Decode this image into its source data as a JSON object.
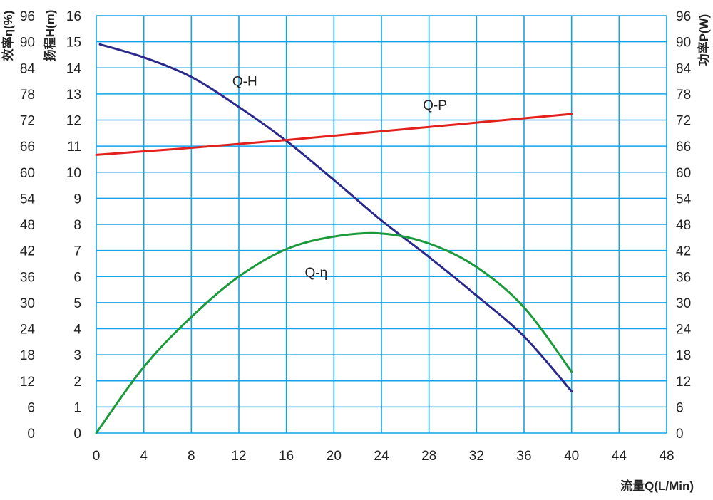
{
  "chart_data": {
    "type": "line",
    "title": "",
    "xlabel": "流量Q(L/Min)",
    "ylabel_left_outer": "效率η(%)",
    "ylabel_left": "扬程H(m)",
    "ylabel_right": "功率P(W)",
    "xlim": [
      0,
      48
    ],
    "ylim_head": [
      0,
      16
    ],
    "ylim_eff": [
      0,
      96
    ],
    "ylim_power": [
      0,
      96
    ],
    "grid": true,
    "x_ticks": [
      0,
      4,
      8,
      12,
      16,
      20,
      24,
      28,
      32,
      36,
      40,
      44,
      48
    ],
    "head_ticks": [
      0,
      1,
      2,
      3,
      4,
      5,
      6,
      7,
      8,
      9,
      10,
      11,
      12,
      13,
      14,
      15,
      16
    ],
    "eff_ticks": [
      0,
      6,
      12,
      18,
      24,
      30,
      36,
      42,
      48,
      54,
      60,
      66,
      72,
      78,
      84,
      90,
      96
    ],
    "power_ticks": [
      0,
      6,
      12,
      18,
      24,
      30,
      36,
      42,
      48,
      54,
      60,
      66,
      72,
      78,
      84,
      90,
      96
    ],
    "series": [
      {
        "name": "Q-H",
        "axis": "head",
        "color": "#2b2a8c",
        "label_at": [
          12.5,
          13.5
        ],
        "x": [
          0.3,
          4,
          8,
          12,
          16,
          20,
          24,
          28,
          32,
          36,
          40
        ],
        "values": [
          14.9,
          14.4,
          13.65,
          12.5,
          11.2,
          9.7,
          8.15,
          6.75,
          5.27,
          3.7,
          1.6
        ]
      },
      {
        "name": "Q-P",
        "axis": "power",
        "color": "#e3211c",
        "label_at": [
          28.5,
          75.5
        ],
        "x": [
          0,
          8,
          16,
          24,
          32,
          40
        ],
        "values": [
          64,
          65.6,
          67.4,
          69.4,
          71.4,
          73.4
        ]
      },
      {
        "name": "Q-η",
        "axis": "eff",
        "color": "#1a9a3a",
        "label_at": [
          18.5,
          37
        ],
        "x": [
          0,
          4,
          8,
          12,
          16,
          20,
          24,
          28,
          32,
          36,
          40
        ],
        "values": [
          0,
          15.2,
          26.7,
          36,
          42.3,
          45.2,
          45.9,
          43.6,
          38.2,
          28.9,
          14.1
        ]
      }
    ]
  },
  "colors": {
    "grid": "#12a3e8",
    "text": "#222222"
  }
}
